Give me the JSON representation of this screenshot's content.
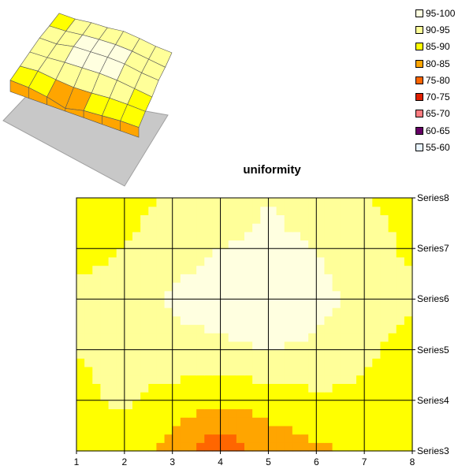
{
  "chart_data": [
    {
      "type": "surface-3d",
      "legend": [
        {
          "label": "95-100",
          "color": "#FFFFE0"
        },
        {
          "label": "90-95",
          "color": "#FFFF99"
        },
        {
          "label": "85-90",
          "color": "#FFFF00"
        },
        {
          "label": "80-85",
          "color": "#FFA500"
        },
        {
          "label": "75-80",
          "color": "#FF6600"
        },
        {
          "label": "70-75",
          "color": "#E02000"
        },
        {
          "label": "65-70",
          "color": "#FF7C80"
        },
        {
          "label": "60-65",
          "color": "#660066"
        },
        {
          "label": "55-60",
          "color": "#E8F4FF"
        }
      ]
    },
    {
      "type": "contour",
      "title": "uniformity",
      "x": [
        1,
        2,
        3,
        4,
        5,
        6,
        7,
        8
      ],
      "series_labels": [
        "Series8",
        "Series7",
        "Series6",
        "Series5",
        "Series4",
        "Series3"
      ],
      "series": [
        {
          "name": "Series3",
          "values": [
            88,
            87,
            83,
            76,
            82,
            84,
            86,
            86
          ]
        },
        {
          "name": "Series4",
          "values": [
            89,
            91,
            88,
            86,
            87,
            89,
            89,
            88
          ]
        },
        {
          "name": "Series5",
          "values": [
            90,
            91,
            93,
            94,
            95,
            94,
            91,
            88
          ]
        },
        {
          "name": "Series6",
          "values": [
            91,
            91,
            96,
            97,
            98,
            97,
            93,
            91
          ]
        },
        {
          "name": "Series7",
          "values": [
            89,
            90,
            93,
            95,
            96,
            95,
            92,
            89
          ]
        },
        {
          "name": "Series8",
          "values": [
            88,
            88,
            91,
            92,
            95,
            93,
            90,
            89
          ]
        }
      ],
      "contour_levels": [
        {
          "min": 95,
          "max": 100,
          "color": "#FFFFE0"
        },
        {
          "min": 90,
          "max": 95,
          "color": "#FFFF99"
        },
        {
          "min": 85,
          "max": 90,
          "color": "#FFFF00"
        },
        {
          "min": 80,
          "max": 85,
          "color": "#FFA500"
        },
        {
          "min": 75,
          "max": 80,
          "color": "#FF6600"
        }
      ],
      "grid": true
    }
  ]
}
